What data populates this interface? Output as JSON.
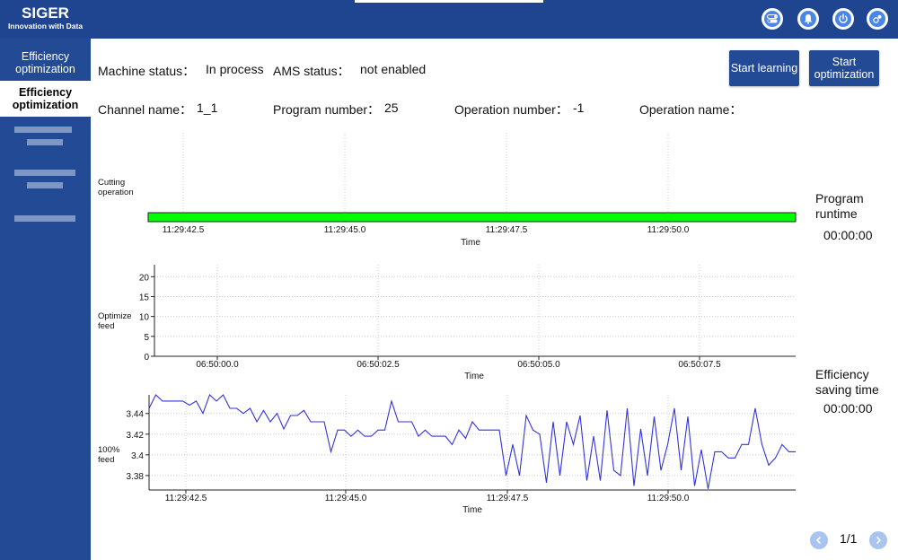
{
  "header": {
    "logo_title": "SIGER",
    "logo_subtitle": "Innovation with Data",
    "icons": [
      "toggle-icon",
      "bell-icon",
      "power-icon",
      "settings-gear-icon"
    ]
  },
  "sidebar": {
    "items": [
      {
        "label": "Efficiency optimization",
        "active": false
      },
      {
        "label": "Efficiency optimization",
        "active": true
      }
    ]
  },
  "status": {
    "machine_status_label": "Machine status：",
    "machine_status_value": "In process",
    "ams_status_label": "AMS status：",
    "ams_status_value": "not enabled",
    "channel_name_label": "Channel name：",
    "channel_name_value": "1_1",
    "program_number_label": "Program number：",
    "program_number_value": "25",
    "operation_number_label": "Operation number：",
    "operation_number_value": "-1",
    "operation_name_label": "Operation name："
  },
  "buttons": {
    "start_learning": "Start learning",
    "start_optimization": "Start optimization"
  },
  "side_panel": {
    "program_runtime_label": "Program runtime",
    "program_runtime_value": "00:00:00",
    "efficiency_saving_label": "Efficiency saving time",
    "efficiency_saving_value": "00:00:00"
  },
  "pager": {
    "text": "1/1"
  },
  "colors": {
    "header": "#1f4591",
    "sidebar": "#234a95",
    "bar": "#00ff00",
    "line": "#3333dd"
  },
  "chart_data": [
    {
      "type": "bar",
      "ylabel": "Cutting operation",
      "xlabel": "Time",
      "x_ticks": [
        "11:29:42.5",
        "11:29:45.0",
        "11:29:47.5",
        "11:29:50.0"
      ],
      "series": [
        {
          "name": "Cutting operation",
          "values": [
            1
          ]
        }
      ],
      "grid": true
    },
    {
      "type": "line",
      "ylabel": "Optimize feed",
      "xlabel": "Time",
      "x_ticks": [
        "06:50:00.0",
        "06:50:02.5",
        "06:50:05.0",
        "06:50:07.5"
      ],
      "y_ticks": [
        "0",
        "5",
        "10",
        "15",
        "20"
      ],
      "ylim": [
        0,
        23
      ],
      "values": [],
      "grid": true
    },
    {
      "type": "line",
      "ylabel": "100% feed",
      "xlabel": "Time",
      "x_ticks": [
        "11:29:42.5",
        "11:29:45.0",
        "11:29:47.5",
        "11:29:50.0"
      ],
      "y_ticks": [
        "3.38",
        "3.4",
        "3.42",
        "3.44"
      ],
      "ylim": [
        3.366,
        3.458
      ],
      "values": [
        3.445,
        3.458,
        3.452,
        3.452,
        3.452,
        3.452,
        3.448,
        3.452,
        3.44,
        3.458,
        3.452,
        3.458,
        3.445,
        3.445,
        3.44,
        3.445,
        3.432,
        3.443,
        3.432,
        3.44,
        3.425,
        3.438,
        3.438,
        3.443,
        3.432,
        3.432,
        3.432,
        3.403,
        3.424,
        3.424,
        3.418,
        3.424,
        3.418,
        3.418,
        3.424,
        3.424,
        3.452,
        3.432,
        3.432,
        3.432,
        3.418,
        3.424,
        3.418,
        3.418,
        3.418,
        3.41,
        3.424,
        3.416,
        3.432,
        3.424,
        3.424,
        3.424,
        3.424,
        3.38,
        3.41,
        3.38,
        3.438,
        3.424,
        3.42,
        3.373,
        3.432,
        3.38,
        3.432,
        3.41,
        3.438,
        3.375,
        3.418,
        3.375,
        3.443,
        3.385,
        3.38,
        3.445,
        3.37,
        3.425,
        3.38,
        3.437,
        3.385,
        3.41,
        3.445,
        3.385,
        3.437,
        3.37,
        3.405,
        3.367,
        3.403,
        3.403,
        3.397,
        3.397,
        3.41,
        3.41,
        3.445,
        3.41,
        3.39,
        3.397,
        3.41,
        3.403,
        3.403
      ],
      "grid": true
    }
  ]
}
